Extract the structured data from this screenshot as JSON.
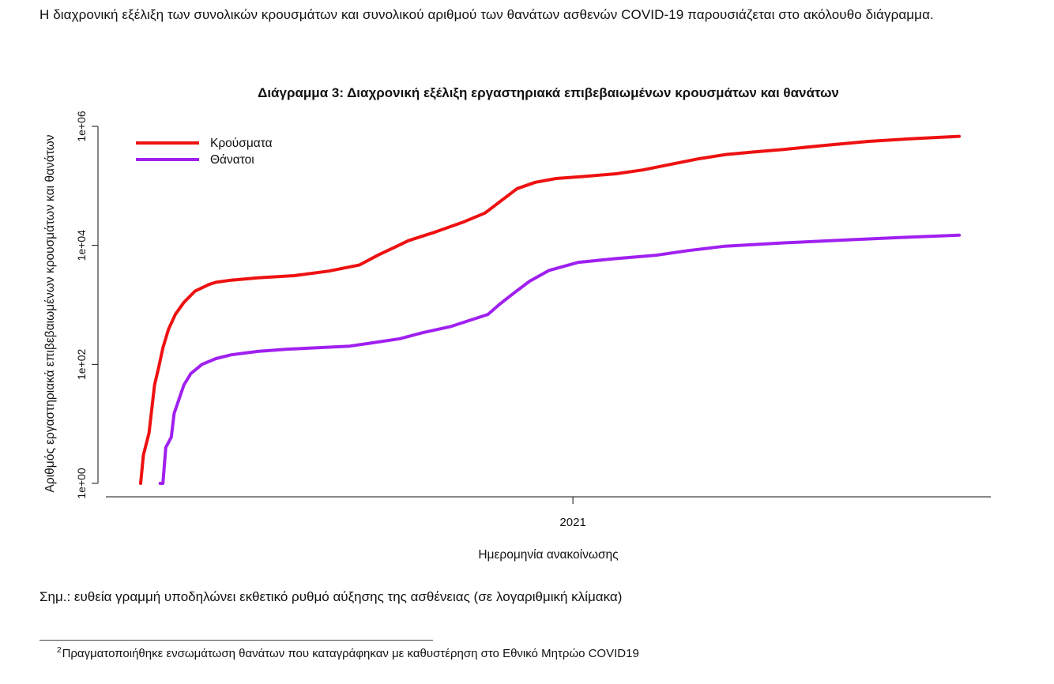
{
  "intro_text": "Η διαχρονική εξέλιξη των συνολικών κρουσμάτων και συνολικού αριθμού των θανάτων ασθενών COVID-19 παρουσιάζεται στο ακόλουθο διάγραμμα.",
  "note_text": "Σημ.: ευθεία γραμμή υποδηλώνει εκθετικό ρυθμό αύξησης της ασθένειας (σε λογαριθμική κλίμακα)",
  "footnote": {
    "marker": "2",
    "text": "Πραγματοποιήθηκε ενσωμάτωση θανάτων που καταγράφηκαν με καθυστέρηση στο Εθνικό Μητρώο COVID19"
  },
  "chart_data": {
    "type": "line",
    "title": "Διάγραμμα 3: Διαχρονική εξέλιξη εργαστηριακά επιβεβαιωμένων κρουσμάτων και θανάτων",
    "xlabel": "Ημερομηνία ανακοίνωσης",
    "ylabel": "Αριθμός εργαστηριακά επιβεβαιωμένων κρουσμάτων και θανάτων",
    "y_scale": "log",
    "ylim": [
      1,
      1000000
    ],
    "xlim": [
      "2020-02-26",
      "2021-10-05"
    ],
    "x_ticks": [
      {
        "value": "2021-01-01",
        "label": "2021"
      }
    ],
    "y_ticks": [
      {
        "value": 1,
        "label": "1e+00"
      },
      {
        "value": 100,
        "label": "1e+02"
      },
      {
        "value": 10000,
        "label": "1e+04"
      },
      {
        "value": 1000000,
        "label": "1e+06"
      }
    ],
    "legend_position": "top-left",
    "grid": false,
    "series": [
      {
        "name": "Κρούσματα",
        "color": "#ee1111",
        "points": [
          [
            "2020-02-26",
            1
          ],
          [
            "2020-02-28",
            3
          ],
          [
            "2020-03-03",
            7
          ],
          [
            "2020-03-07",
            45
          ],
          [
            "2020-03-10",
            90
          ],
          [
            "2020-03-13",
            190
          ],
          [
            "2020-03-17",
            390
          ],
          [
            "2020-03-22",
            700
          ],
          [
            "2020-03-28",
            1100
          ],
          [
            "2020-04-05",
            1700
          ],
          [
            "2020-04-15",
            2200
          ],
          [
            "2020-04-20",
            2400
          ],
          [
            "2020-05-01",
            2600
          ],
          [
            "2020-05-20",
            2850
          ],
          [
            "2020-06-15",
            3100
          ],
          [
            "2020-07-10",
            3700
          ],
          [
            "2020-08-01",
            4700
          ],
          [
            "2020-08-15",
            7000
          ],
          [
            "2020-08-25",
            9000
          ],
          [
            "2020-09-05",
            12000
          ],
          [
            "2020-09-25",
            17000
          ],
          [
            "2020-10-15",
            25000
          ],
          [
            "2020-10-30",
            35000
          ],
          [
            "2020-11-10",
            55000
          ],
          [
            "2020-11-22",
            90000
          ],
          [
            "2020-12-05",
            115000
          ],
          [
            "2020-12-20",
            133000
          ],
          [
            "2021-01-10",
            145000
          ],
          [
            "2021-02-01",
            160000
          ],
          [
            "2021-02-20",
            185000
          ],
          [
            "2021-03-10",
            225000
          ],
          [
            "2021-04-01",
            285000
          ],
          [
            "2021-04-20",
            335000
          ],
          [
            "2021-05-10",
            370000
          ],
          [
            "2021-06-01",
            410000
          ],
          [
            "2021-07-01",
            480000
          ],
          [
            "2021-08-01",
            560000
          ],
          [
            "2021-09-01",
            620000
          ],
          [
            "2021-10-05",
            680000
          ]
        ]
      },
      {
        "name": "Θάνατοι",
        "color": "#a020f0",
        "points": [
          [
            "2020-03-11",
            1
          ],
          [
            "2020-03-13",
            1
          ],
          [
            "2020-03-15",
            4
          ],
          [
            "2020-03-19",
            6
          ],
          [
            "2020-03-21",
            15
          ],
          [
            "2020-03-24",
            24
          ],
          [
            "2020-03-28",
            45
          ],
          [
            "2020-04-02",
            70
          ],
          [
            "2020-04-10",
            100
          ],
          [
            "2020-04-20",
            125
          ],
          [
            "2020-05-01",
            145
          ],
          [
            "2020-05-20",
            165
          ],
          [
            "2020-06-10",
            180
          ],
          [
            "2020-07-05",
            192
          ],
          [
            "2020-07-25",
            203
          ],
          [
            "2020-08-10",
            230
          ],
          [
            "2020-08-30",
            270
          ],
          [
            "2020-09-15",
            340
          ],
          [
            "2020-10-05",
            430
          ],
          [
            "2020-10-20",
            560
          ],
          [
            "2020-11-01",
            690
          ],
          [
            "2020-11-10",
            1050
          ],
          [
            "2020-11-20",
            1600
          ],
          [
            "2020-12-01",
            2500
          ],
          [
            "2020-12-15",
            3800
          ],
          [
            "2021-01-05",
            5200
          ],
          [
            "2021-02-01",
            6000
          ],
          [
            "2021-03-01",
            6800
          ],
          [
            "2021-03-25",
            8200
          ],
          [
            "2021-04-20",
            9700
          ],
          [
            "2021-06-01",
            11000
          ],
          [
            "2021-07-15",
            12300
          ],
          [
            "2021-09-01",
            13800
          ],
          [
            "2021-10-05",
            14800
          ]
        ]
      }
    ]
  }
}
